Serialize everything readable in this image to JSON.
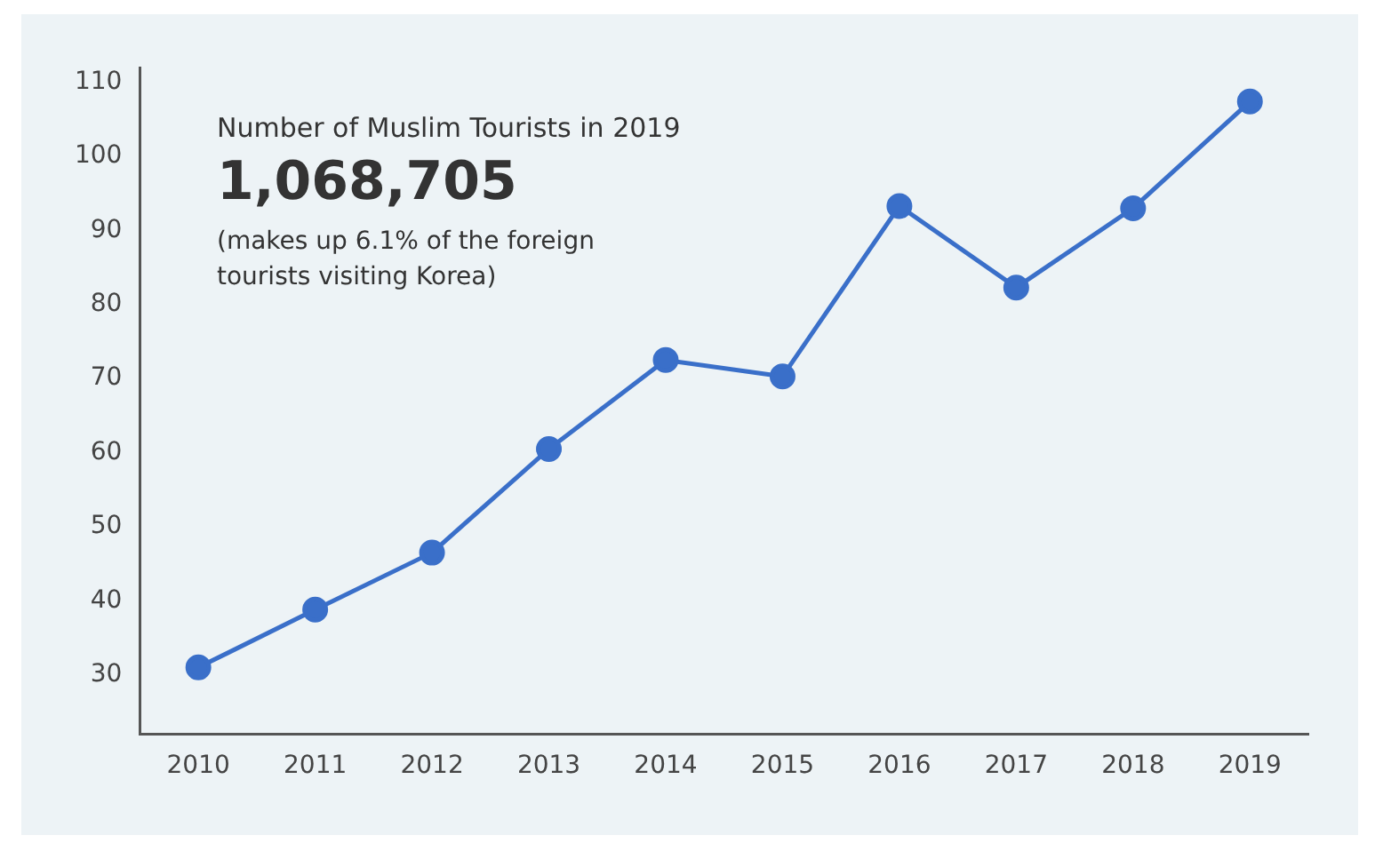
{
  "chart_data": {
    "type": "line",
    "categories": [
      "2010",
      "2011",
      "2012",
      "2013",
      "2014",
      "2015",
      "2016",
      "2017",
      "2018",
      "2019"
    ],
    "series": [
      {
        "color": "#3a6fc9",
        "values": [
          31,
          38.8,
          46.5,
          60.5,
          72.5,
          70.3,
          93.3,
          82.3,
          93,
          107.4
        ]
      }
    ],
    "ylim": [
      22,
      112
    ],
    "yticks": [
      30,
      40,
      50,
      60,
      70,
      80,
      90,
      100,
      110
    ],
    "grid": false,
    "legend": false,
    "marker": "circle",
    "line_style": "solid",
    "annotations": [
      "Number of Muslim Tourists in 2019",
      "1,068,705",
      "(makes up 6.1% of the foreign tourists visiting Korea)"
    ]
  }
}
